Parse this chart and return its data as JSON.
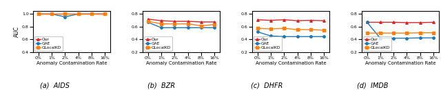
{
  "x_ticks": [
    "0%",
    "1%",
    "2%",
    "4%",
    "8%",
    "16%"
  ],
  "x_vals": [
    0,
    1,
    2,
    3,
    4,
    5
  ],
  "subplots": [
    {
      "title": "(a)  AIDS",
      "ylim": [
        0.4,
        1.05
      ],
      "yticks": [
        0.4,
        0.6,
        0.8,
        1.0
      ],
      "our": [
        1.0,
        1.0,
        1.0,
        1.0,
        1.0,
        1.0
      ],
      "gae": [
        1.0,
        1.0,
        0.955,
        1.0,
        1.0,
        1.0
      ],
      "glockalkd": [
        1.0,
        1.0,
        1.0,
        1.0,
        1.0,
        1.0
      ]
    },
    {
      "title": "(b)  BZR",
      "ylim": [
        0.2,
        0.85
      ],
      "yticks": [
        0.2,
        0.4,
        0.6,
        0.8
      ],
      "our": [
        0.72,
        0.695,
        0.685,
        0.685,
        0.675,
        0.675
      ],
      "gae": [
        0.67,
        0.585,
        0.585,
        0.585,
        0.585,
        0.585
      ],
      "glockalkd": [
        0.685,
        0.645,
        0.645,
        0.645,
        0.615,
        0.635
      ]
    },
    {
      "title": "(c)  DHFR",
      "ylim": [
        0.2,
        0.85
      ],
      "yticks": [
        0.2,
        0.4,
        0.6,
        0.8
      ],
      "our": [
        0.71,
        0.7,
        0.71,
        0.695,
        0.7,
        0.695
      ],
      "gae": [
        0.52,
        0.455,
        0.445,
        0.445,
        0.445,
        0.445
      ],
      "glockalkd": [
        0.575,
        0.565,
        0.575,
        0.555,
        0.555,
        0.545
      ]
    },
    {
      "title": "(d)  IMDB",
      "ylim": [
        0.2,
        0.85
      ],
      "yticks": [
        0.2,
        0.4,
        0.6,
        0.8
      ],
      "our": [
        0.67,
        0.67,
        0.67,
        0.665,
        0.665,
        0.67
      ],
      "gae": [
        0.67,
        0.42,
        0.42,
        0.42,
        0.425,
        0.425
      ],
      "glockalkd": [
        0.5,
        0.5,
        0.5,
        0.5,
        0.505,
        0.505
      ]
    }
  ],
  "colors": {
    "our": "#d62728",
    "gae": "#1f77b4",
    "glockalkd": "#ff7f0e"
  },
  "markers": {
    "our": "^",
    "gae": "o",
    "glockalkd": "s"
  },
  "xlabel": "Anomaly Contamination Rate",
  "ylabel": "AUC",
  "linewidth": 1.0,
  "markersize": 2.5
}
